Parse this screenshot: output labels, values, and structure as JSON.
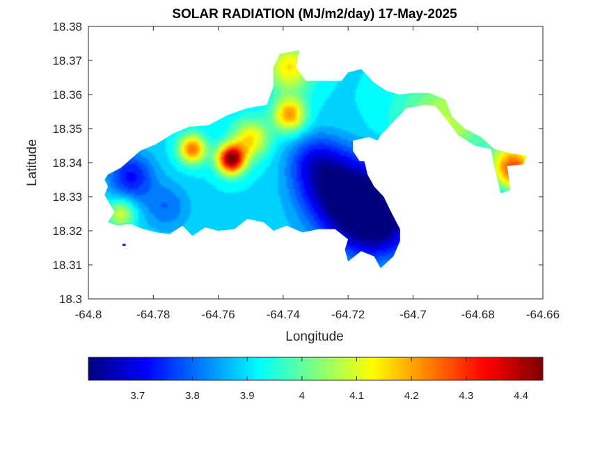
{
  "chart_data": {
    "type": "heatmap",
    "title": "SOLAR RADIATION (MJ/m2/day) 17-May-2025",
    "xlabel": "Longitude",
    "ylabel": "Latitude",
    "xlim": [
      -64.8,
      -64.66
    ],
    "ylim": [
      18.3,
      18.38
    ],
    "xticks": [
      "-64.8",
      "-64.78",
      "-64.76",
      "-64.74",
      "-64.72",
      "-64.7",
      "-64.68",
      "-64.66"
    ],
    "yticks": [
      "18.3",
      "18.31",
      "18.32",
      "18.33",
      "18.34",
      "18.35",
      "18.36",
      "18.37",
      "18.38"
    ],
    "colorbar": {
      "colormap": "jet",
      "range": [
        3.61,
        4.44
      ],
      "ticks": [
        "3.7",
        "3.8",
        "3.9",
        "4",
        "4.1",
        "4.2",
        "4.3",
        "4.4"
      ]
    },
    "land_outline": [
      [
        -64.794,
        18.3365
      ],
      [
        -64.79,
        18.3385
      ],
      [
        -64.784,
        18.3435
      ],
      [
        -64.779,
        18.3455
      ],
      [
        -64.774,
        18.3485
      ],
      [
        -64.769,
        18.3505
      ],
      [
        -64.763,
        18.351
      ],
      [
        -64.757,
        18.354
      ],
      [
        -64.751,
        18.356
      ],
      [
        -64.745,
        18.357
      ],
      [
        -64.743,
        18.3625
      ],
      [
        -64.743,
        18.368
      ],
      [
        -64.741,
        18.372
      ],
      [
        -64.735,
        18.373
      ],
      [
        -64.736,
        18.368
      ],
      [
        -64.733,
        18.364
      ],
      [
        -64.727,
        18.364
      ],
      [
        -64.722,
        18.364
      ],
      [
        -64.72,
        18.3665
      ],
      [
        -64.716,
        18.3675
      ],
      [
        -64.712,
        18.3635
      ],
      [
        -64.708,
        18.361
      ],
      [
        -64.704,
        18.36
      ],
      [
        -64.7,
        18.3605
      ],
      [
        -64.695,
        18.3605
      ],
      [
        -64.69,
        18.3585
      ],
      [
        -64.688,
        18.3535
      ],
      [
        -64.684,
        18.35
      ],
      [
        -64.679,
        18.3475
      ],
      [
        -64.675,
        18.344
      ],
      [
        -64.671,
        18.343
      ],
      [
        -64.665,
        18.342
      ],
      [
        -64.666,
        18.3395
      ],
      [
        -64.671,
        18.339
      ],
      [
        -64.67,
        18.332
      ],
      [
        -64.673,
        18.331
      ],
      [
        -64.675,
        18.339
      ],
      [
        -64.676,
        18.344
      ],
      [
        -64.681,
        18.345
      ],
      [
        -64.686,
        18.348
      ],
      [
        -64.69,
        18.353
      ],
      [
        -64.693,
        18.3565
      ],
      [
        -64.696,
        18.357
      ],
      [
        -64.702,
        18.356
      ],
      [
        -64.706,
        18.352
      ],
      [
        -64.71,
        18.348
      ],
      [
        -64.712,
        18.345
      ],
      [
        -64.714,
        18.3435
      ],
      [
        -64.715,
        18.3405
      ],
      [
        -64.714,
        18.3365
      ],
      [
        -64.712,
        18.333
      ],
      [
        -64.709,
        18.33
      ],
      [
        -64.707,
        18.326
      ],
      [
        -64.704,
        18.3205
      ],
      [
        -64.704,
        18.317
      ],
      [
        -64.706,
        18.3125
      ],
      [
        -64.71,
        18.309
      ],
      [
        -64.712,
        18.3125
      ],
      [
        -64.716,
        18.314
      ],
      [
        -64.72,
        18.311
      ],
      [
        -64.721,
        18.3145
      ],
      [
        -64.72,
        18.3175
      ],
      [
        -64.724,
        18.3205
      ],
      [
        -64.729,
        18.3205
      ],
      [
        -64.734,
        18.3195
      ],
      [
        -64.739,
        18.3215
      ],
      [
        -64.743,
        18.32
      ],
      [
        -64.746,
        18.3225
      ],
      [
        -64.751,
        18.3235
      ],
      [
        -64.755,
        18.3205
      ],
      [
        -64.76,
        18.32
      ],
      [
        -64.764,
        18.321
      ],
      [
        -64.768,
        18.3185
      ],
      [
        -64.771,
        18.3215
      ],
      [
        -64.775,
        18.319
      ],
      [
        -64.779,
        18.3195
      ],
      [
        -64.783,
        18.3205
      ],
      [
        -64.787,
        18.322
      ],
      [
        -64.791,
        18.3215
      ],
      [
        -64.794,
        18.3225
      ],
      [
        -64.792,
        18.3255
      ],
      [
        -64.795,
        18.3305
      ],
      [
        -64.794,
        18.333
      ],
      [
        -64.795,
        18.335
      ]
    ],
    "inner_water": [
      [
        -64.7185,
        18.3465
      ],
      [
        -64.7135,
        18.3475
      ],
      [
        -64.7085,
        18.3455
      ],
      [
        -64.706,
        18.3435
      ],
      [
        -64.71,
        18.34
      ],
      [
        -64.7165,
        18.3405
      ],
      [
        -64.7185,
        18.3435
      ]
    ],
    "islet": [
      [
        -64.7895,
        18.3155
      ],
      [
        -64.7885,
        18.3155
      ],
      [
        -64.7885,
        18.3162
      ],
      [
        -64.7895,
        18.3162
      ]
    ],
    "field": {
      "base": 3.9,
      "features": [
        {
          "lon": -64.756,
          "lat": 18.341,
          "amp": 0.55,
          "sigma": 0.003
        },
        {
          "lon": -64.768,
          "lat": 18.344,
          "amp": 0.35,
          "sigma": 0.003
        },
        {
          "lon": -64.738,
          "lat": 18.354,
          "amp": 0.32,
          "sigma": 0.0035
        },
        {
          "lon": -64.75,
          "lat": 18.347,
          "amp": 0.25,
          "sigma": 0.004
        },
        {
          "lon": -64.738,
          "lat": 18.368,
          "amp": 0.25,
          "sigma": 0.005
        },
        {
          "lon": -64.669,
          "lat": 18.338,
          "amp": 0.45,
          "sigma": 0.005
        },
        {
          "lon": -64.69,
          "lat": 18.352,
          "amp": 0.18,
          "sigma": 0.01
        },
        {
          "lon": -64.712,
          "lat": 18.323,
          "amp": -0.28,
          "sigma": 0.008
        },
        {
          "lon": -64.722,
          "lat": 18.331,
          "amp": -0.22,
          "sigma": 0.008
        },
        {
          "lon": -64.73,
          "lat": 18.34,
          "amp": -0.15,
          "sigma": 0.006
        },
        {
          "lon": -64.787,
          "lat": 18.336,
          "amp": -0.18,
          "sigma": 0.005
        },
        {
          "lon": -64.776,
          "lat": 18.327,
          "amp": -0.1,
          "sigma": 0.005
        },
        {
          "lon": -64.79,
          "lat": 18.325,
          "amp": 0.2,
          "sigma": 0.003
        }
      ]
    }
  }
}
